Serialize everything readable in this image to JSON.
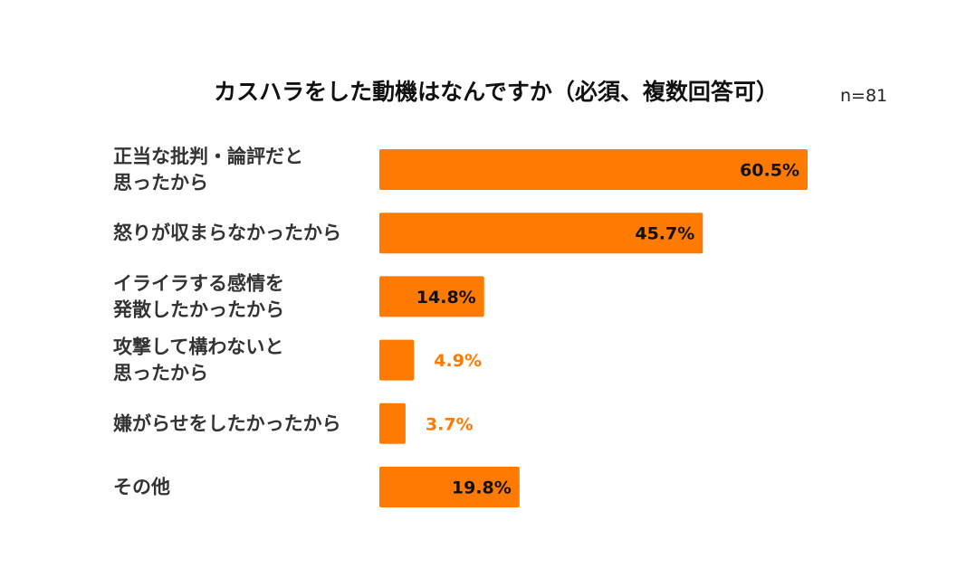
{
  "chart_data": {
    "type": "bar",
    "orientation": "horizontal",
    "title": "カスハラをした動機はなんですか（必須、複数回答可）",
    "sample_size": "n=81",
    "categories": [
      "正当な批判・論評だと\n思ったから",
      "怒りが収まらなかったから",
      "イライラする感情を\n発散したかったから",
      "攻撃して構わないと\n思ったから",
      "嫌がらせをしたかったから",
      "その他"
    ],
    "values": [
      60.5,
      45.7,
      14.8,
      4.9,
      3.7,
      19.8
    ],
    "value_labels": [
      "60.5%",
      "45.7%",
      "14.8%",
      "4.9%",
      "3.7%",
      "19.8%"
    ],
    "xlim": [
      0,
      60.5
    ],
    "grid": false,
    "legend": "none",
    "colors": {
      "bar": "#ff7a00",
      "label_inside": "#111111",
      "label_outside": "#ff7a00",
      "category_text": "#333333"
    }
  }
}
